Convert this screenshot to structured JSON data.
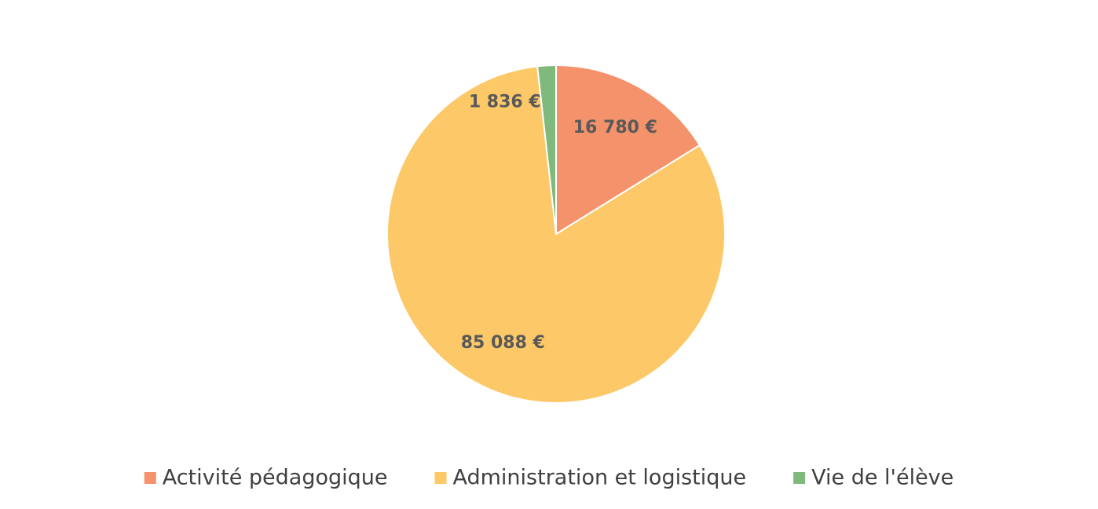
{
  "chart_data": {
    "type": "pie",
    "categories": [
      "Activité pédagogique",
      "Administration et logistique",
      "Vie de l'élève"
    ],
    "values": [
      16780,
      85088,
      1836
    ],
    "value_labels": [
      "16 780 €",
      "85 088 €",
      "1 836 €"
    ],
    "colors": [
      "#f4936b",
      "#fdc867",
      "#80b97c"
    ],
    "legend": "bottom"
  }
}
